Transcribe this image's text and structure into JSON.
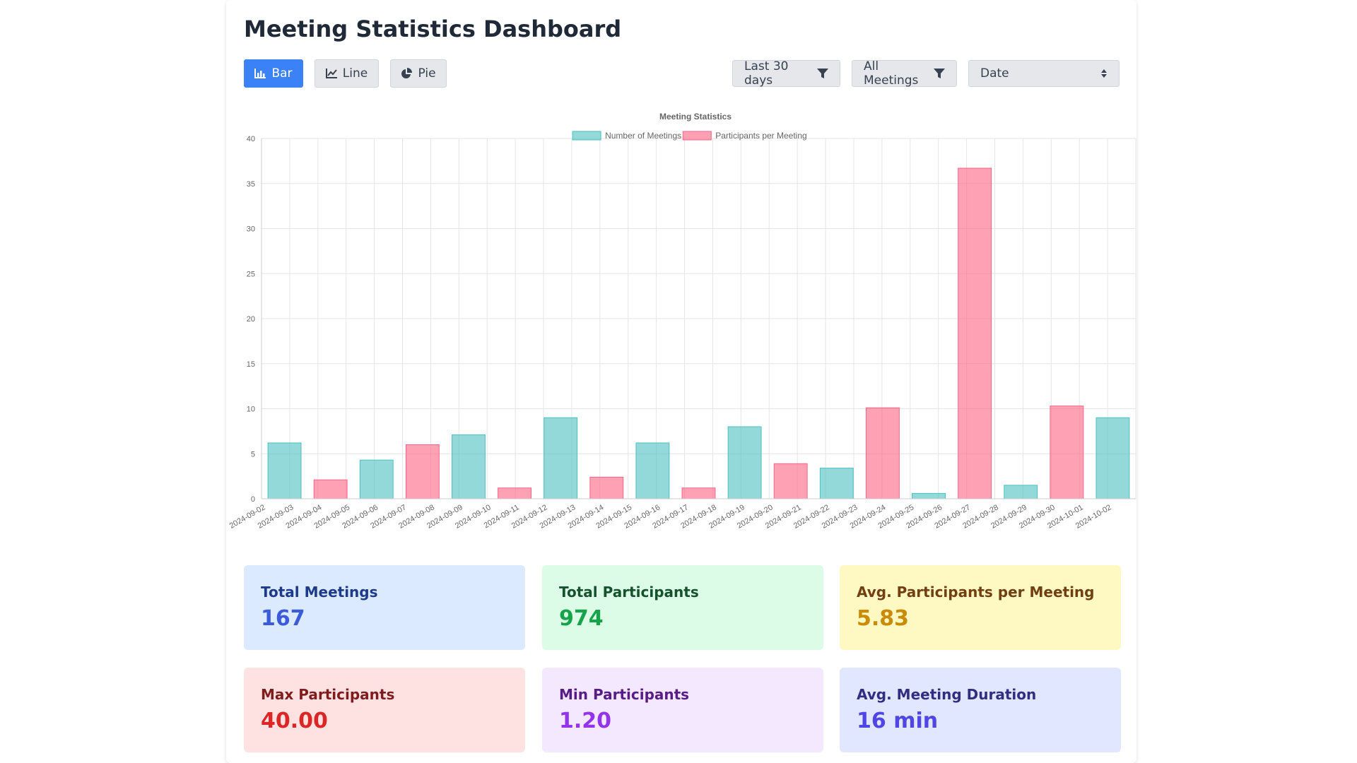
{
  "page": {
    "title": "Meeting Statistics Dashboard"
  },
  "toolbar": {
    "chart_types": [
      {
        "label": "Bar",
        "icon": "bar-chart-icon",
        "active": true
      },
      {
        "label": "Line",
        "icon": "line-chart-icon",
        "active": false
      },
      {
        "label": "Pie",
        "icon": "pie-chart-icon",
        "active": false
      }
    ],
    "date_filter": "Last 30 days",
    "meeting_filter": "All Meetings",
    "sort_select": "Date",
    "accent_color": "#3b82f6"
  },
  "chart_data": {
    "type": "bar",
    "title": "Meeting Statistics",
    "legend_position": "top",
    "grid": true,
    "ylim": [
      0,
      40
    ],
    "yticks": [
      0,
      5,
      10,
      15,
      20,
      25,
      30,
      35,
      40
    ],
    "categories": [
      "2024-09-02",
      "2024-09-03",
      "2024-09-04",
      "2024-09-05",
      "2024-09-06",
      "2024-09-07",
      "2024-09-08",
      "2024-09-09",
      "2024-09-10",
      "2024-09-11",
      "2024-09-12",
      "2024-09-13",
      "2024-09-14",
      "2024-09-15",
      "2024-09-16",
      "2024-09-17",
      "2024-09-18",
      "2024-09-19",
      "2024-09-20",
      "2024-09-21",
      "2024-09-22",
      "2024-09-23",
      "2024-09-24",
      "2024-09-25",
      "2024-09-26",
      "2024-09-27",
      "2024-09-28",
      "2024-09-29",
      "2024-09-30",
      "2024-10-01",
      "2024-10-02"
    ],
    "bars": [
      {
        "series": "Number of Meetings",
        "value": 6.2
      },
      {
        "series": "Participants per Meeting",
        "value": 2.1
      },
      {
        "series": "Number of Meetings",
        "value": 4.3
      },
      {
        "series": "Participants per Meeting",
        "value": 6.0
      },
      {
        "series": "Number of Meetings",
        "value": 7.1
      },
      {
        "series": "Participants per Meeting",
        "value": 1.2
      },
      {
        "series": "Number of Meetings",
        "value": 9.0
      },
      {
        "series": "Participants per Meeting",
        "value": 2.4
      },
      {
        "series": "Number of Meetings",
        "value": 6.2
      },
      {
        "series": "Participants per Meeting",
        "value": 1.2
      },
      {
        "series": "Number of Meetings",
        "value": 8.0
      },
      {
        "series": "Participants per Meeting",
        "value": 3.9
      },
      {
        "series": "Number of Meetings",
        "value": 3.4
      },
      {
        "series": "Participants per Meeting",
        "value": 10.1
      },
      {
        "series": "Number of Meetings",
        "value": 0.6
      },
      {
        "series": "Participants per Meeting",
        "value": 36.7
      },
      {
        "series": "Number of Meetings",
        "value": 1.5
      },
      {
        "series": "Participants per Meeting",
        "value": 10.3
      },
      {
        "series": "Number of Meetings",
        "value": 9.0
      }
    ],
    "series": [
      {
        "name": "Number of Meetings",
        "color": "#4bc0c0"
      },
      {
        "name": "Participants per Meeting",
        "color": "#ff6384"
      }
    ]
  },
  "stats": [
    {
      "label": "Total Meetings",
      "value": "167",
      "bg": "#dbeafe",
      "label_color": "#1e3a8a",
      "value_color": "#3b5bdb"
    },
    {
      "label": "Total Participants",
      "value": "974",
      "bg": "#dcfce7",
      "label_color": "#14532d",
      "value_color": "#16a34a"
    },
    {
      "label": "Avg. Participants per Meeting",
      "value": "5.83",
      "bg": "#fef9c3",
      "label_color": "#713f12",
      "value_color": "#ca8a04"
    },
    {
      "label": "Max Participants",
      "value": "40.00",
      "bg": "#fee2e2",
      "label_color": "#7f1d1d",
      "value_color": "#dc2626"
    },
    {
      "label": "Min Participants",
      "value": "1.20",
      "bg": "#f3e8ff",
      "label_color": "#581c87",
      "value_color": "#9333ea"
    },
    {
      "label": "Avg. Meeting Duration",
      "value": "16 min",
      "bg": "#e0e7ff",
      "label_color": "#312e81",
      "value_color": "#4f46e5"
    }
  ]
}
